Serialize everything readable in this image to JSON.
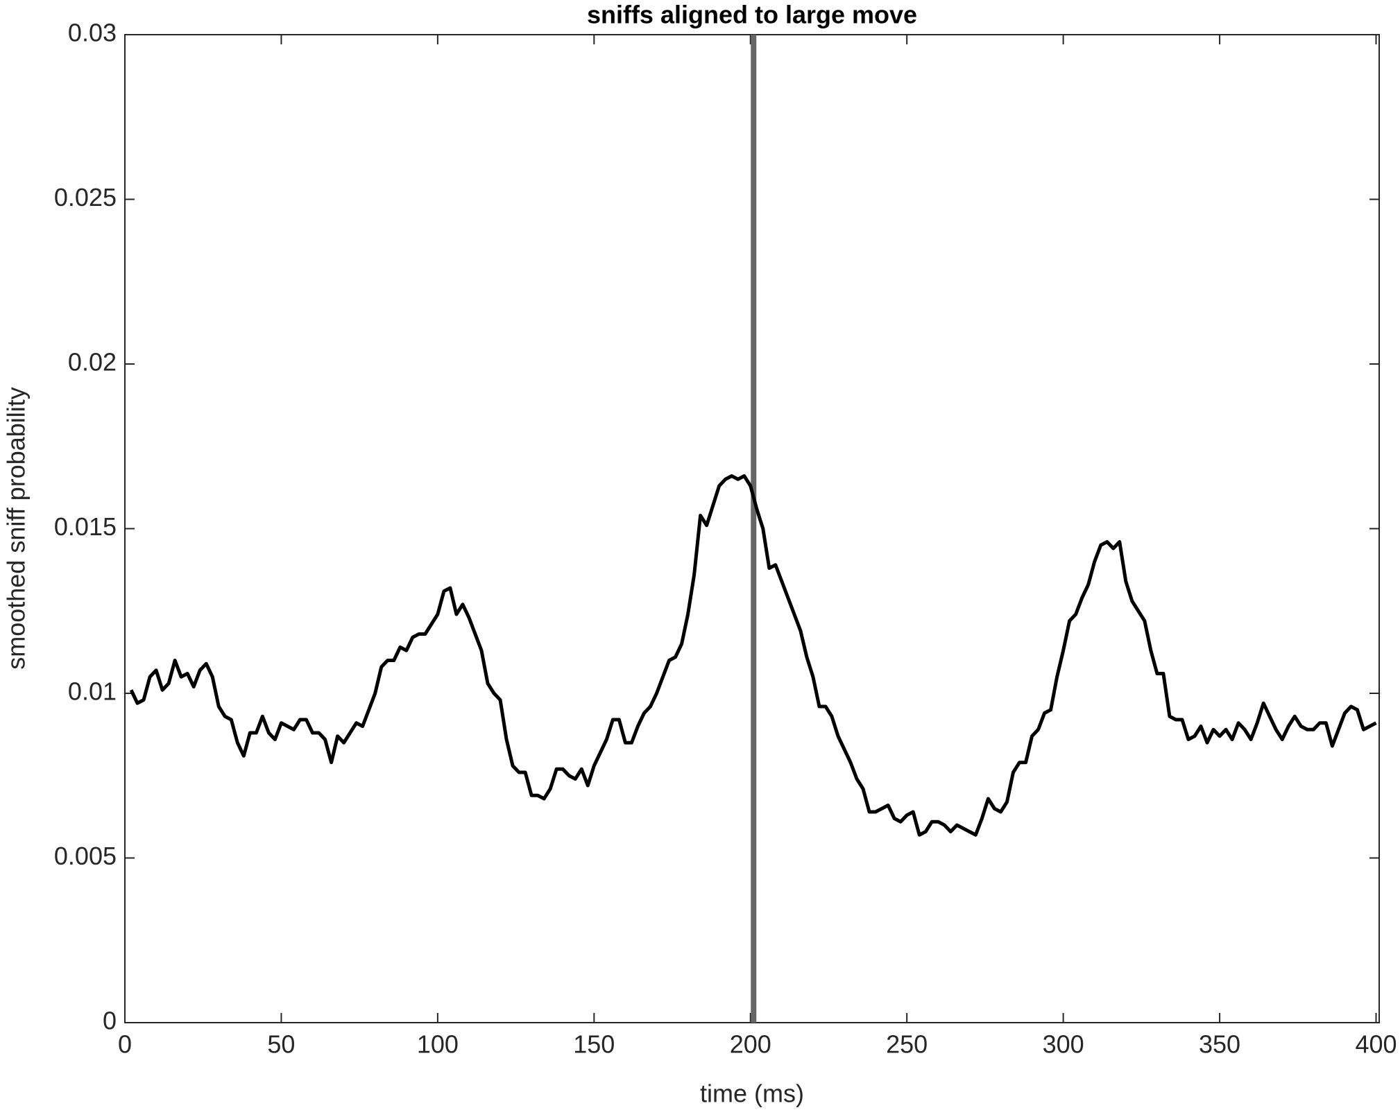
{
  "chart_data": {
    "type": "line",
    "title": "sniffs aligned to large move",
    "x_label": "time (ms)",
    "y_label": "smoothed sniff probability",
    "x": [
      2,
      4,
      6,
      8,
      10,
      12,
      14,
      16,
      18,
      20,
      22,
      24,
      26,
      28,
      30,
      32,
      34,
      36,
      38,
      40,
      42,
      44,
      46,
      48,
      50,
      52,
      54,
      56,
      58,
      60,
      62,
      64,
      66,
      68,
      70,
      72,
      74,
      76,
      78,
      80,
      82,
      84,
      86,
      88,
      90,
      92,
      94,
      96,
      98,
      100,
      102,
      104,
      106,
      108,
      110,
      112,
      114,
      116,
      118,
      120,
      122,
      124,
      126,
      128,
      130,
      132,
      134,
      136,
      138,
      140,
      142,
      144,
      146,
      148,
      150,
      152,
      154,
      156,
      158,
      160,
      162,
      164,
      166,
      168,
      170,
      172,
      174,
      176,
      178,
      180,
      182,
      184,
      186,
      188,
      190,
      192,
      194,
      196,
      198,
      200,
      202,
      204,
      206,
      208,
      210,
      212,
      214,
      216,
      218,
      220,
      222,
      224,
      226,
      228,
      230,
      232,
      234,
      236,
      238,
      240,
      242,
      244,
      246,
      248,
      250,
      252,
      254,
      256,
      258,
      260,
      262,
      264,
      266,
      268,
      270,
      272,
      274,
      276,
      278,
      280,
      282,
      284,
      286,
      288,
      290,
      292,
      294,
      296,
      298,
      300,
      302,
      304,
      306,
      308,
      310,
      312,
      314,
      316,
      318,
      320,
      322,
      324,
      326,
      328,
      330,
      332,
      334,
      336,
      338,
      340,
      342,
      344,
      346,
      348,
      350,
      352,
      354,
      356,
      358,
      360,
      362,
      364,
      366,
      368,
      370,
      372,
      374,
      376,
      378,
      380,
      382,
      384,
      386,
      388,
      390,
      392,
      394,
      396,
      398,
      400
    ],
    "series": [
      {
        "name": "smoothed sniff probability",
        "color": "#000000",
        "values": [
          0.0101,
          0.0097,
          0.0098,
          0.0105,
          0.0107,
          0.0101,
          0.0103,
          0.011,
          0.0105,
          0.0106,
          0.0102,
          0.0107,
          0.0109,
          0.0105,
          0.0096,
          0.0093,
          0.0092,
          0.0085,
          0.0081,
          0.0088,
          0.0088,
          0.0093,
          0.0088,
          0.0086,
          0.0091,
          0.009,
          0.0089,
          0.0092,
          0.0092,
          0.0088,
          0.0088,
          0.0086,
          0.0079,
          0.0087,
          0.0085,
          0.0088,
          0.0091,
          0.009,
          0.0095,
          0.01,
          0.0108,
          0.011,
          0.011,
          0.0114,
          0.0113,
          0.0117,
          0.0118,
          0.0118,
          0.0121,
          0.0124,
          0.0131,
          0.0132,
          0.0124,
          0.0127,
          0.0123,
          0.0118,
          0.0113,
          0.0103,
          0.01,
          0.0098,
          0.0086,
          0.0078,
          0.0076,
          0.0076,
          0.0069,
          0.0069,
          0.0068,
          0.0071,
          0.0077,
          0.0077,
          0.0075,
          0.0074,
          0.0077,
          0.0072,
          0.0078,
          0.0082,
          0.0086,
          0.0092,
          0.0092,
          0.0085,
          0.0085,
          0.009,
          0.0094,
          0.0096,
          0.01,
          0.0105,
          0.011,
          0.0111,
          0.0115,
          0.0124,
          0.0136,
          0.0154,
          0.0151,
          0.0157,
          0.0163,
          0.0165,
          0.0166,
          0.0165,
          0.0166,
          0.0163,
          0.0156,
          0.015,
          0.0138,
          0.0139,
          0.0134,
          0.0129,
          0.0124,
          0.0119,
          0.0111,
          0.0105,
          0.0096,
          0.0096,
          0.0093,
          0.0087,
          0.0083,
          0.0079,
          0.0074,
          0.0071,
          0.0064,
          0.0064,
          0.0065,
          0.0066,
          0.0062,
          0.0061,
          0.0063,
          0.0064,
          0.0057,
          0.0058,
          0.0061,
          0.0061,
          0.006,
          0.0058,
          0.006,
          0.0059,
          0.0058,
          0.0057,
          0.0062,
          0.0068,
          0.0065,
          0.0064,
          0.0067,
          0.0076,
          0.0079,
          0.0079,
          0.0087,
          0.0089,
          0.0094,
          0.0095,
          0.0105,
          0.0113,
          0.0122,
          0.0124,
          0.0129,
          0.0133,
          0.014,
          0.0145,
          0.0146,
          0.0144,
          0.0146,
          0.0134,
          0.0128,
          0.0125,
          0.0122,
          0.0113,
          0.0106,
          0.0106,
          0.0093,
          0.0092,
          0.0092,
          0.0086,
          0.0087,
          0.009,
          0.0085,
          0.0089,
          0.0087,
          0.0089,
          0.0086,
          0.0091,
          0.0089,
          0.0086,
          0.0091,
          0.0097,
          0.0093,
          0.0089,
          0.0086,
          0.009,
          0.0093,
          0.009,
          0.0089,
          0.0089,
          0.0091,
          0.0091,
          0.0084,
          0.0089,
          0.0094,
          0.0096,
          0.0095,
          0.0089,
          0.009,
          0.0091
        ]
      }
    ],
    "marker_line": {
      "x": 201,
      "color": "#666666"
    },
    "xlim": [
      0,
      401
    ],
    "xticks": [
      0,
      50,
      100,
      150,
      200,
      250,
      300,
      350,
      400
    ],
    "ylim": [
      0,
      0.03
    ],
    "yticks": [
      0,
      0.005,
      0.01,
      0.015,
      0.02,
      0.025,
      0.03
    ]
  }
}
